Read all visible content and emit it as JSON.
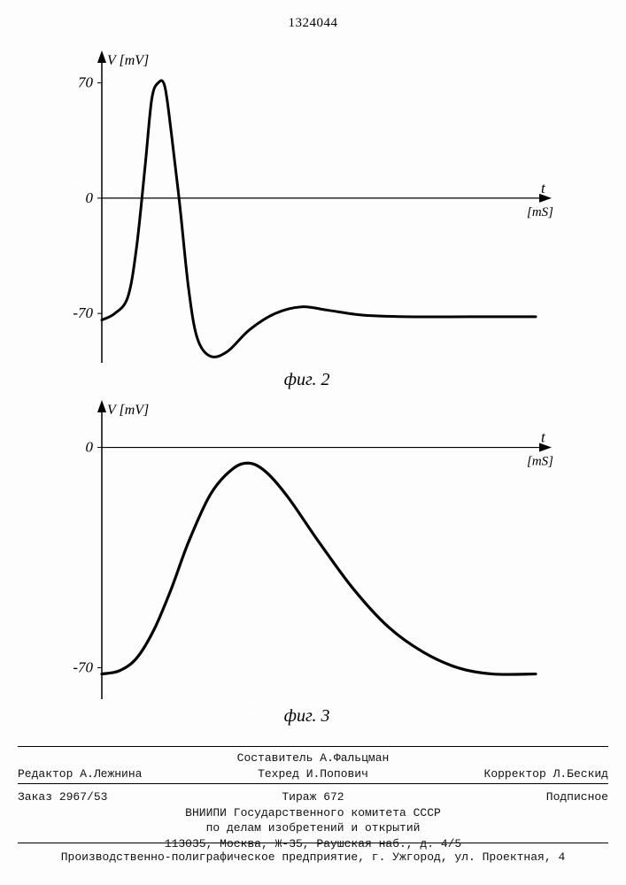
{
  "document_number": "1324044",
  "chart2": {
    "type": "line",
    "fig_label": "фиг. 2",
    "y_axis": {
      "label": "V [mV]",
      "ticks": [
        {
          "value": 70,
          "label": "70"
        },
        {
          "value": 0,
          "label": "0"
        },
        {
          "value": -70,
          "label": "-70"
        }
      ],
      "range": [
        -100,
        80
      ]
    },
    "x_axis": {
      "label_top": "t",
      "label_bottom": "[mS]"
    },
    "stroke_color": "#000000",
    "stroke_width": 3,
    "axis_color": "#000000",
    "background_color": "#fdfdfd",
    "series": [
      {
        "t": 0.0,
        "v": -74
      },
      {
        "t": 0.3,
        "v": -70
      },
      {
        "t": 0.6,
        "v": -60
      },
      {
        "t": 0.8,
        "v": -30
      },
      {
        "t": 1.0,
        "v": 20
      },
      {
        "t": 1.15,
        "v": 60
      },
      {
        "t": 1.3,
        "v": 70
      },
      {
        "t": 1.45,
        "v": 68
      },
      {
        "t": 1.6,
        "v": 40
      },
      {
        "t": 1.8,
        "v": -5
      },
      {
        "t": 2.0,
        "v": -55
      },
      {
        "t": 2.2,
        "v": -85
      },
      {
        "t": 2.5,
        "v": -96
      },
      {
        "t": 2.9,
        "v": -93
      },
      {
        "t": 3.4,
        "v": -80
      },
      {
        "t": 4.0,
        "v": -70
      },
      {
        "t": 4.6,
        "v": -66
      },
      {
        "t": 5.2,
        "v": -68
      },
      {
        "t": 6.0,
        "v": -71
      },
      {
        "t": 7.0,
        "v": -72
      },
      {
        "t": 8.5,
        "v": -72
      },
      {
        "t": 10.0,
        "v": -72
      }
    ]
  },
  "chart3": {
    "type": "line",
    "fig_label": "фиг. 3",
    "y_axis": {
      "label": "V [mV]",
      "ticks": [
        {
          "value": 0,
          "label": "0"
        },
        {
          "value": -70,
          "label": "-70"
        }
      ],
      "range": [
        -80,
        10
      ]
    },
    "x_axis": {
      "label_top": "t",
      "label_bottom": "[mS]"
    },
    "stroke_color": "#000000",
    "stroke_width": 3.2,
    "axis_color": "#000000",
    "background_color": "#fdfdfd",
    "series": [
      {
        "t": 0.0,
        "v": -72
      },
      {
        "t": 0.4,
        "v": -71
      },
      {
        "t": 0.8,
        "v": -67
      },
      {
        "t": 1.2,
        "v": -58
      },
      {
        "t": 1.6,
        "v": -45
      },
      {
        "t": 2.0,
        "v": -30
      },
      {
        "t": 2.5,
        "v": -15
      },
      {
        "t": 3.0,
        "v": -7
      },
      {
        "t": 3.4,
        "v": -5
      },
      {
        "t": 3.8,
        "v": -8
      },
      {
        "t": 4.3,
        "v": -16
      },
      {
        "t": 5.0,
        "v": -30
      },
      {
        "t": 5.8,
        "v": -45
      },
      {
        "t": 6.6,
        "v": -57
      },
      {
        "t": 7.4,
        "v": -65
      },
      {
        "t": 8.2,
        "v": -70
      },
      {
        "t": 9.0,
        "v": -72
      },
      {
        "t": 10.0,
        "v": -72
      }
    ]
  },
  "footer": {
    "compiler_label": "Составитель",
    "compiler_name": "А.Фальцман",
    "editor_label": "Редактор",
    "editor_name": "А.Лежнина",
    "tech_editor_label": "Техред",
    "tech_editor_name": "И.Попович",
    "corrector_label": "Корректор",
    "corrector_name": "Л.Бескид",
    "order_label": "Заказ",
    "order_number": "2967/53",
    "print_run_label": "Тираж",
    "print_run": "672",
    "subscription": "Подписное",
    "org_line1": "ВНИИПИ Государственного комитета СССР",
    "org_line2": "по делам изобретений и открытий",
    "address": "113035, Москва, Ж-35, Раушская наб., д. 4/5",
    "print_house": "Производственно-полиграфическое предприятие, г. Ужгород, ул. Проектная, 4"
  }
}
